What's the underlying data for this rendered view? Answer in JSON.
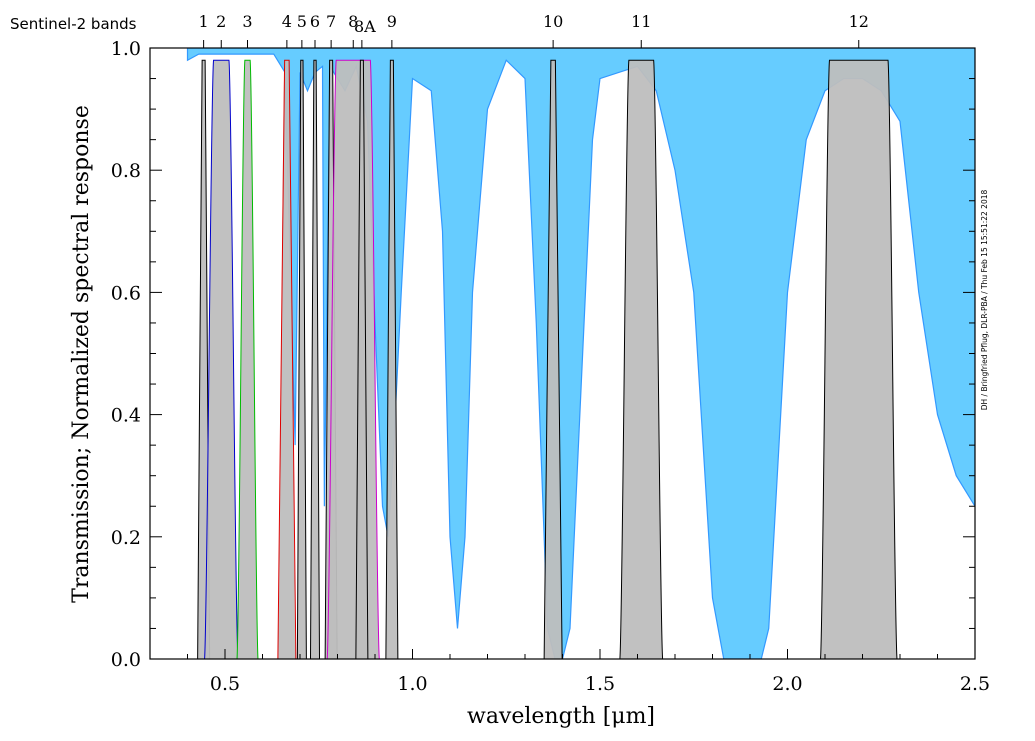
{
  "chart_data": {
    "type": "area",
    "title": "",
    "xlabel": "wavelength  [μm]",
    "ylabel": "Transmission; Normalized spectral response",
    "top_axis_title": "Sentinel-2 bands",
    "credit": "DH / Bringfried Pflug, DLR-PBA / Thu Feb 15 15:51:22 2018",
    "xlim": [
      0.3,
      2.5
    ],
    "ylim": [
      0.0,
      1.0
    ],
    "x_ticks": [
      0.5,
      1.0,
      1.5,
      2.0,
      2.5
    ],
    "x_tick_labels": [
      "0.5",
      "1.0",
      "1.5",
      "2.0",
      "2.5"
    ],
    "y_ticks": [
      0.0,
      0.2,
      0.4,
      0.6,
      0.8,
      1.0
    ],
    "y_tick_labels": [
      "0.0",
      "0.2",
      "0.4",
      "0.6",
      "0.8",
      "1.0"
    ],
    "grid": false,
    "colors": {
      "transmission_fill": "#66ccff",
      "transmission_line": "#3399ff",
      "band_fill": "#bebebe",
      "band_outline": "#000000",
      "band2": "#0000cc",
      "band3": "#00bb00",
      "band4": "#dd0000",
      "band8": "#cc00cc"
    },
    "transmission": {
      "x": [
        0.4,
        0.43,
        0.46,
        0.5,
        0.55,
        0.58,
        0.6,
        0.63,
        0.66,
        0.687,
        0.7,
        0.72,
        0.74,
        0.76,
        0.765,
        0.78,
        0.8,
        0.82,
        0.85,
        0.88,
        0.9,
        0.92,
        0.935,
        0.95,
        0.97,
        1.0,
        1.05,
        1.08,
        1.1,
        1.12,
        1.14,
        1.16,
        1.2,
        1.25,
        1.3,
        1.33,
        1.36,
        1.38,
        1.4,
        1.42,
        1.45,
        1.48,
        1.5,
        1.55,
        1.6,
        1.65,
        1.7,
        1.75,
        1.8,
        1.83,
        1.85,
        1.88,
        1.9,
        1.93,
        1.95,
        2.0,
        2.05,
        2.1,
        2.15,
        2.2,
        2.25,
        2.3,
        2.35,
        2.4,
        2.45,
        2.5
      ],
      "y": [
        0.98,
        0.99,
        0.99,
        0.99,
        0.99,
        0.99,
        0.99,
        0.99,
        0.96,
        0.35,
        0.96,
        0.93,
        0.96,
        0.97,
        0.25,
        0.97,
        0.95,
        0.93,
        0.97,
        0.88,
        0.55,
        0.25,
        0.2,
        0.35,
        0.6,
        0.95,
        0.93,
        0.7,
        0.2,
        0.05,
        0.2,
        0.6,
        0.9,
        0.98,
        0.95,
        0.55,
        0.05,
        0.0,
        0.0,
        0.05,
        0.45,
        0.85,
        0.95,
        0.96,
        0.97,
        0.93,
        0.8,
        0.6,
        0.1,
        0.0,
        0.0,
        0.0,
        0.0,
        0.0,
        0.05,
        0.6,
        0.85,
        0.93,
        0.95,
        0.95,
        0.93,
        0.88,
        0.6,
        0.4,
        0.3,
        0.25
      ]
    },
    "bands": [
      {
        "name": "1",
        "center": 0.443,
        "width": 0.02
      },
      {
        "name": "2",
        "center": 0.49,
        "width": 0.065
      },
      {
        "name": "3",
        "center": 0.56,
        "width": 0.035
      },
      {
        "name": "4",
        "center": 0.665,
        "width": 0.03
      },
      {
        "name": "5",
        "center": 0.705,
        "width": 0.015
      },
      {
        "name": "6",
        "center": 0.74,
        "width": 0.015
      },
      {
        "name": "7",
        "center": 0.783,
        "width": 0.02
      },
      {
        "name": "8",
        "center": 0.842,
        "width": 0.115
      },
      {
        "name": "8A",
        "center": 0.865,
        "width": 0.02
      },
      {
        "name": "9",
        "center": 0.945,
        "width": 0.02
      },
      {
        "name": "10",
        "center": 1.375,
        "width": 0.03
      },
      {
        "name": "11",
        "center": 1.61,
        "width": 0.09
      },
      {
        "name": "12",
        "center": 2.19,
        "width": 0.18
      }
    ],
    "top_label_positions": {
      "1": 0.443,
      "2": 0.49,
      "3": 0.56,
      "4": 0.665,
      "5": 0.705,
      "6": 0.74,
      "7": 0.783,
      "8": 0.842,
      "8A": 0.865,
      "9": 0.945,
      "10": 1.375,
      "11": 1.61,
      "12": 2.19
    }
  }
}
